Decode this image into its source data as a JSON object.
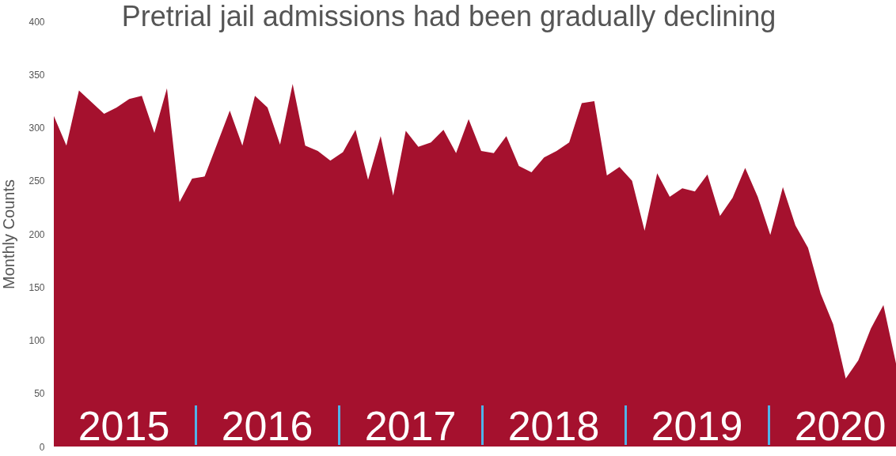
{
  "chart_data": {
    "type": "area",
    "title": "Pretrial jail admissions had been gradually declining",
    "ylabel": "Monthly Counts",
    "categories": [
      null,
      null,
      null,
      null,
      null,
      null,
      null,
      null,
      null,
      null,
      null,
      null,
      null,
      null,
      null,
      null,
      null,
      null,
      null,
      null,
      null,
      null,
      null,
      null,
      null,
      null,
      null,
      null,
      null,
      null,
      null,
      null,
      null,
      null,
      null,
      null,
      null,
      null,
      null,
      null,
      null,
      null,
      null,
      null,
      null,
      null,
      null,
      null,
      null,
      null,
      null,
      null,
      null,
      null,
      null,
      null,
      null,
      null,
      null,
      null,
      null,
      null,
      null,
      null,
      null,
      null,
      null,
      null
    ],
    "values": [
      311,
      283,
      335,
      324,
      313,
      319,
      327,
      330,
      295,
      337,
      230,
      252,
      254,
      285,
      316,
      283,
      330,
      319,
      284,
      341,
      283,
      278,
      269,
      277,
      298,
      251,
      292,
      236,
      297,
      282,
      286,
      298,
      276,
      308,
      278,
      276,
      292,
      264,
      258,
      272,
      278,
      286,
      323,
      325,
      255,
      263,
      250,
      203,
      257,
      235,
      243,
      240,
      256,
      217,
      234,
      262,
      235,
      199,
      244,
      208,
      187,
      144,
      115,
      64,
      81,
      111,
      133,
      78
    ],
    "color": "#a5112e",
    "ylim": [
      0,
      400
    ],
    "yticks": [
      0,
      50,
      100,
      150,
      200,
      250,
      300,
      350,
      400
    ],
    "grid": false,
    "annotations": [
      "2015",
      "2016",
      "2017",
      "2018",
      "2019",
      "2020"
    ]
  }
}
